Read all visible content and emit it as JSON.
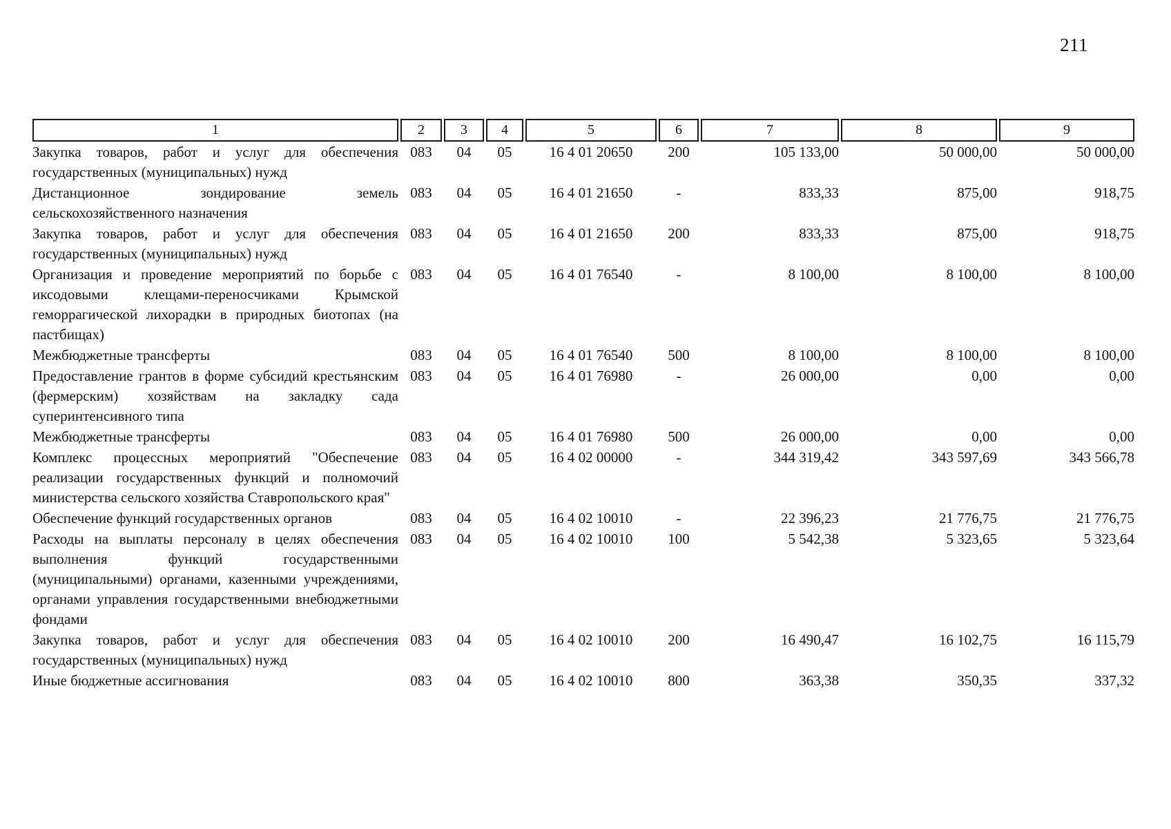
{
  "page": {
    "number": "211"
  },
  "table": {
    "headers": [
      "1",
      "2",
      "3",
      "4",
      "5",
      "6",
      "7",
      "8",
      "9"
    ],
    "rows": [
      {
        "name": "Закупка товаров, работ и услуг для обеспечения государственных (муниципальных) нужд",
        "cells": [
          "083",
          "04",
          "05",
          "16 4 01 20650",
          "200",
          "105 133,00",
          "50 000,00",
          "50 000,00"
        ]
      },
      {
        "name": "Дистанционное зондирование земель сельскохозяйственного назначения",
        "cells": [
          "083",
          "04",
          "05",
          "16 4 01 21650",
          "-",
          "833,33",
          "875,00",
          "918,75"
        ]
      },
      {
        "name": "Закупка товаров, работ и услуг для обеспечения государственных (муниципальных) нужд",
        "cells": [
          "083",
          "04",
          "05",
          "16 4 01 21650",
          "200",
          "833,33",
          "875,00",
          "918,75"
        ]
      },
      {
        "name": "Организация и проведение мероприятий по борьбе с иксодовыми клещами-переносчиками Крымской геморрагической лихорадки в природных биотопах (на пастбищах)",
        "cells": [
          "083",
          "04",
          "05",
          "16 4 01 76540",
          "-",
          "8 100,00",
          "8 100,00",
          "8 100,00"
        ]
      },
      {
        "name": "Межбюджетные трансферты",
        "cells": [
          "083",
          "04",
          "05",
          "16 4 01 76540",
          "500",
          "8 100,00",
          "8 100,00",
          "8 100,00"
        ]
      },
      {
        "name": "Предоставление грантов в форме субсидий крестьянским (фермерским) хозяйствам на закладку сада суперинтенсивного типа",
        "cells": [
          "083",
          "04",
          "05",
          "16 4 01 76980",
          "-",
          "26 000,00",
          "0,00",
          "0,00"
        ]
      },
      {
        "name": "Межбюджетные трансферты",
        "cells": [
          "083",
          "04",
          "05",
          "16 4 01 76980",
          "500",
          "26 000,00",
          "0,00",
          "0,00"
        ]
      },
      {
        "name": "Комплекс процессных мероприятий \"Обеспечение реализации государственных функций и полномочий министерства сельского хозяйства Ставропольского края\"",
        "cells": [
          "083",
          "04",
          "05",
          "16 4 02 00000",
          "-",
          "344 319,42",
          "343 597,69",
          "343 566,78"
        ]
      },
      {
        "name": "Обеспечение функций государственных органов",
        "cells": [
          "083",
          "04",
          "05",
          "16 4 02 10010",
          "-",
          "22 396,23",
          "21 776,75",
          "21 776,75"
        ]
      },
      {
        "name": "Расходы на выплаты персоналу в целях обеспечения выполнения функций государственными (муниципальными) органами, казенными учреждениями, органами управления государственными внебюджетными фондами",
        "cells": [
          "083",
          "04",
          "05",
          "16 4 02 10010",
          "100",
          "5 542,38",
          "5 323,65",
          "5 323,64"
        ]
      },
      {
        "name": "Закупка товаров, работ и услуг для обеспечения государственных (муниципальных) нужд",
        "cells": [
          "083",
          "04",
          "05",
          "16 4 02 10010",
          "200",
          "16 490,47",
          "16 102,75",
          "16 115,79"
        ]
      },
      {
        "name": "Иные бюджетные ассигнования",
        "cells": [
          "083",
          "04",
          "05",
          "16 4 02 10010",
          "800",
          "363,38",
          "350,35",
          "337,32"
        ]
      }
    ]
  }
}
